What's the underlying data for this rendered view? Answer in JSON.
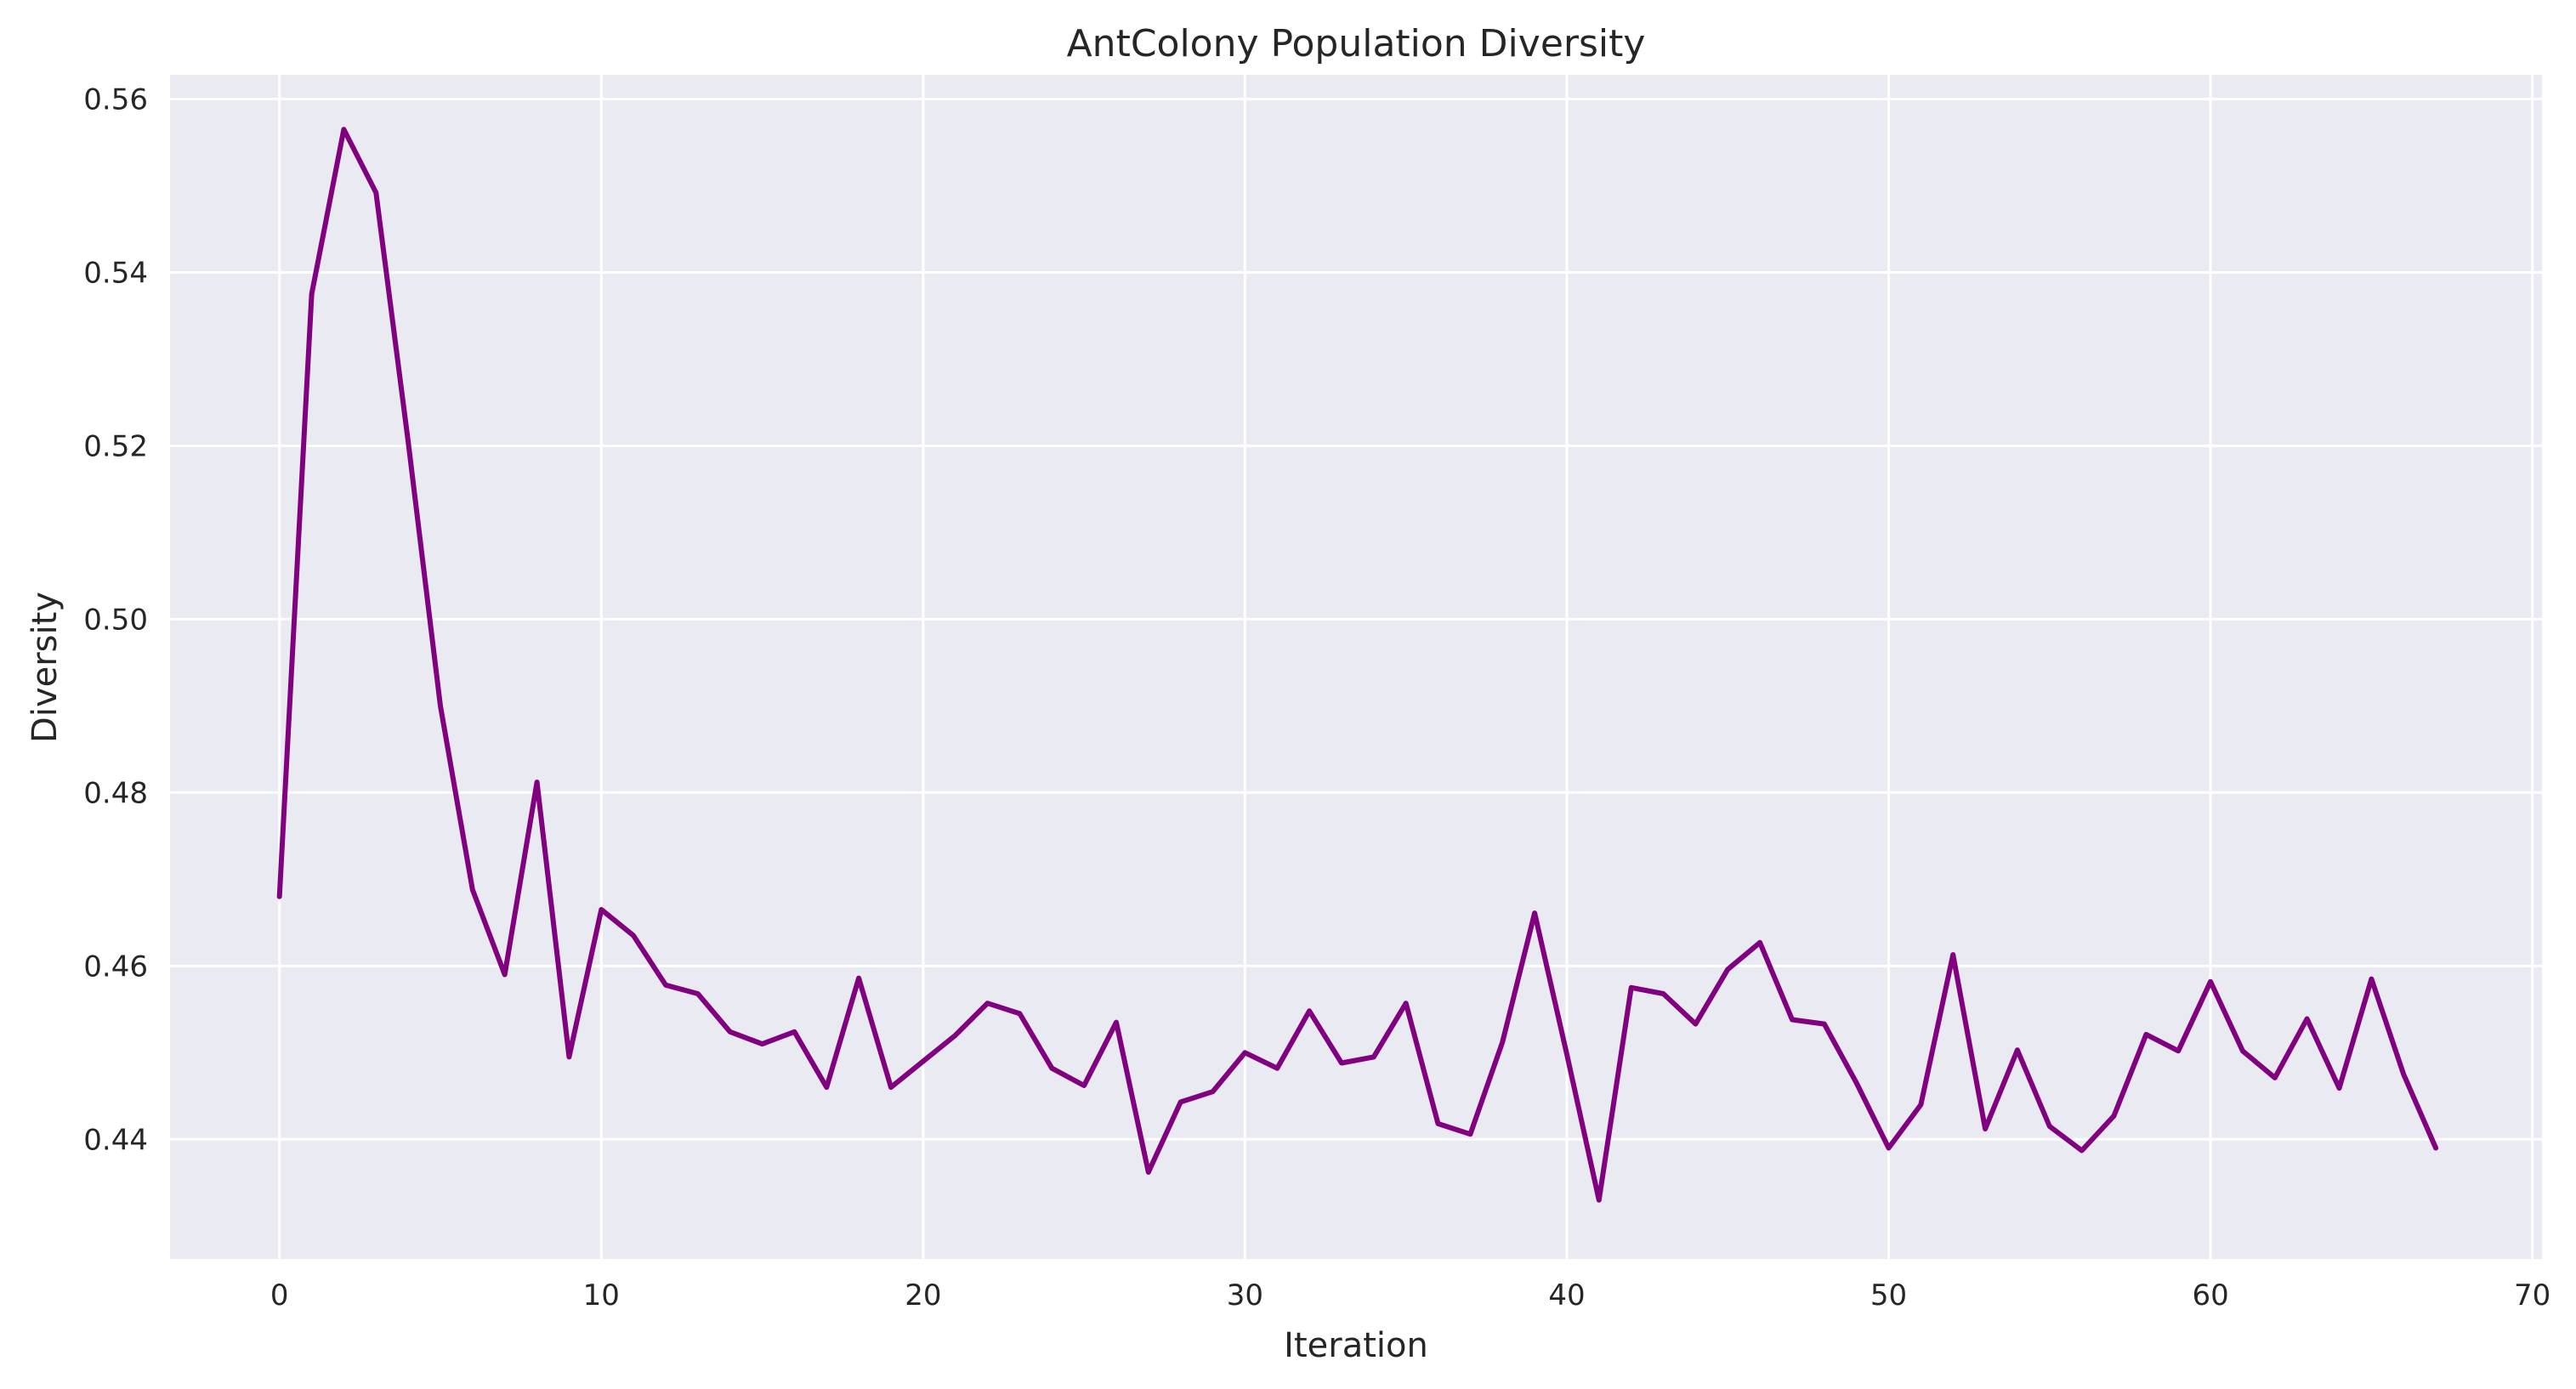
{
  "chart_data": {
    "type": "line",
    "title": "AntColony Population Diversity",
    "xlabel": "Iteration",
    "ylabel": "Diversity",
    "xlim": [
      -3.4,
      70.3
    ],
    "ylim": [
      0.4262,
      0.5628
    ],
    "xticks": [
      0,
      10,
      20,
      30,
      40,
      50,
      60,
      70
    ],
    "yticks": [
      0.44,
      0.46,
      0.48,
      0.5,
      0.52,
      0.54,
      0.56
    ],
    "grid": true,
    "legend": "none",
    "series": [
      {
        "color": "#800080",
        "x": [
          0,
          1,
          2,
          3,
          4,
          5,
          6,
          7,
          8,
          9,
          10,
          11,
          12,
          13,
          14,
          15,
          16,
          17,
          18,
          19,
          20,
          21,
          22,
          23,
          24,
          25,
          26,
          27,
          28,
          29,
          30,
          31,
          32,
          33,
          34,
          35,
          36,
          37,
          38,
          39,
          40,
          41,
          42,
          43,
          44,
          45,
          46,
          47,
          48,
          49,
          50,
          51,
          52,
          53,
          54,
          55,
          56,
          57,
          58,
          59,
          60,
          61,
          62,
          63,
          64,
          65,
          66,
          67
        ],
        "y": [
          0.468,
          0.5375,
          0.5565,
          0.5492,
          0.5205,
          0.49,
          0.4688,
          0.459,
          0.4812,
          0.4495,
          0.4665,
          0.4635,
          0.4578,
          0.4568,
          0.4524,
          0.451,
          0.4524,
          0.446,
          0.4586,
          0.446,
          0.449,
          0.452,
          0.4557,
          0.4545,
          0.4482,
          0.4462,
          0.4535,
          0.4362,
          0.4443,
          0.4455,
          0.45,
          0.4482,
          0.4548,
          0.4488,
          0.4495,
          0.4557,
          0.4418,
          0.4406,
          0.4512,
          0.4661,
          0.4498,
          0.433,
          0.4575,
          0.4568,
          0.4533,
          0.4596,
          0.4627,
          0.4538,
          0.4533,
          0.4465,
          0.439,
          0.444,
          0.4613,
          0.4412,
          0.4503,
          0.4415,
          0.4387,
          0.4427,
          0.4521,
          0.4502,
          0.4582,
          0.4502,
          0.4471,
          0.4539,
          0.4459,
          0.4585,
          0.4475,
          0.439
        ]
      }
    ]
  }
}
